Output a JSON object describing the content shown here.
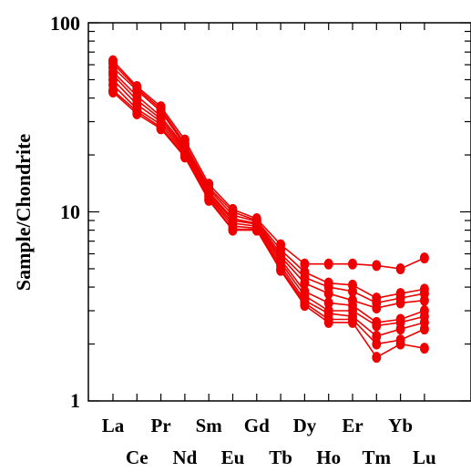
{
  "chart_data": {
    "type": "line",
    "ylabel": "Sample/Chondrite",
    "yscale": "log",
    "ylim": [
      1,
      100
    ],
    "ytick_labels": [
      "1",
      "10",
      "100"
    ],
    "categories": [
      "La",
      "Ce",
      "Pr",
      "Nd",
      "Sm",
      "Eu",
      "Gd",
      "Tb",
      "Dy",
      "Ho",
      "Er",
      "Tm",
      "Yb",
      "Lu"
    ],
    "x_labels_upper": [
      "La",
      "Pr",
      "Eu",
      "Tb",
      "Ho",
      "Tm",
      "Lu"
    ],
    "x_labels_lower": [
      "Ce",
      "Nd",
      "Sm",
      "Gd",
      "Dy",
      "Er",
      "Yb"
    ],
    "color": "#ee0000",
    "grid": false,
    "series": [
      {
        "values": [
          63,
          46,
          36,
          24,
          14,
          10.3,
          9.2,
          6.7,
          5.3,
          5.3,
          5.3,
          5.2,
          5.0,
          5.7
        ]
      },
      {
        "values": [
          61,
          45,
          35,
          23,
          13.5,
          10.0,
          9.0,
          6.3,
          4.8,
          4.2,
          4.1,
          3.5,
          3.7,
          3.9
        ]
      },
      {
        "values": [
          58,
          44,
          34,
          22.5,
          13.2,
          9.6,
          8.9,
          6.0,
          4.5,
          4.0,
          3.8,
          3.3,
          3.5,
          3.7
        ]
      },
      {
        "values": [
          55,
          41,
          32,
          22,
          12.8,
          9.2,
          8.7,
          5.8,
          4.2,
          3.7,
          3.4,
          3.1,
          3.3,
          3.4
        ]
      },
      {
        "values": [
          53,
          39,
          31,
          21.5,
          12.5,
          9.0,
          8.6,
          5.6,
          3.8,
          3.3,
          3.2,
          2.6,
          2.7,
          3.0
        ]
      },
      {
        "values": [
          50,
          37,
          30,
          21,
          12.2,
          8.7,
          8.4,
          5.4,
          3.6,
          3.0,
          3.0,
          2.5,
          2.6,
          2.8
        ]
      },
      {
        "values": [
          47,
          35,
          29,
          20.5,
          12.0,
          8.4,
          8.2,
          5.2,
          3.4,
          2.9,
          2.8,
          2.2,
          2.4,
          2.6
        ]
      },
      {
        "values": [
          44,
          34,
          28,
          20,
          11.7,
          8.1,
          8.1,
          5.0,
          3.3,
          2.7,
          2.7,
          2.0,
          2.1,
          2.4
        ]
      },
      {
        "values": [
          43,
          33,
          27.5,
          19.5,
          11.5,
          8.0,
          8.0,
          4.9,
          3.2,
          2.6,
          2.6,
          1.7,
          2.0,
          1.9
        ]
      }
    ]
  }
}
